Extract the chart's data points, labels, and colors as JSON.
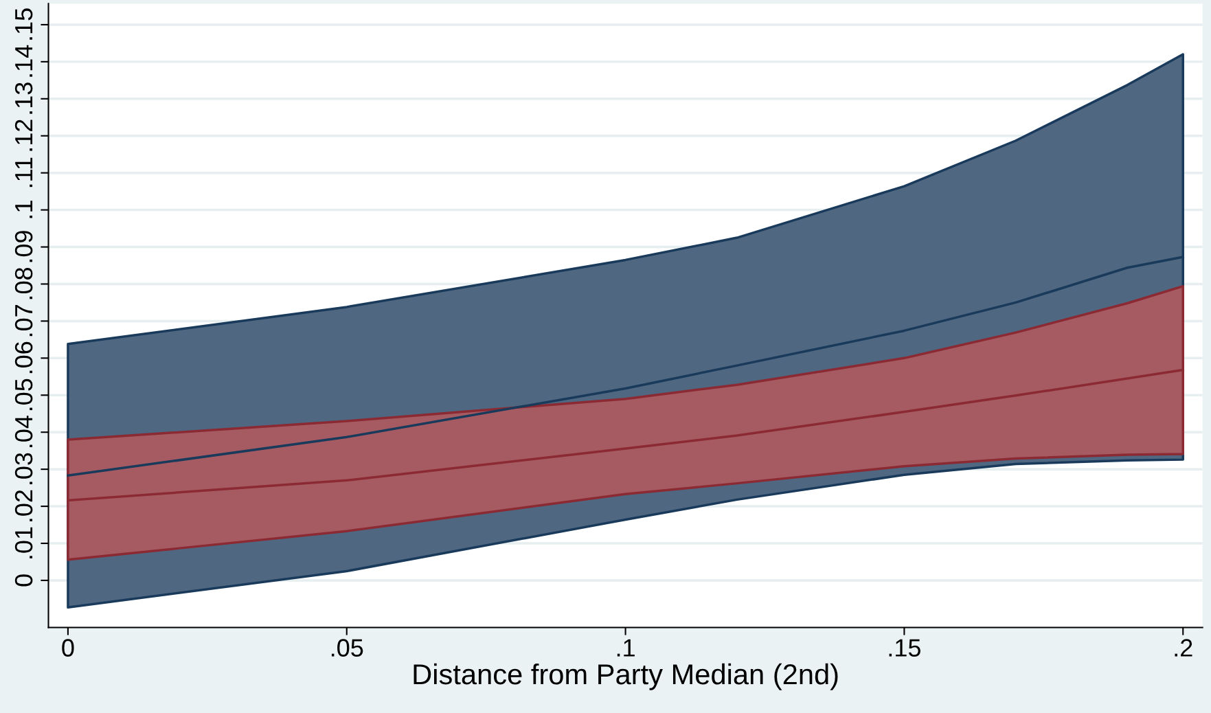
{
  "chart_data": {
    "type": "line",
    "xlabel": "Distance from Party Median (2nd)",
    "x": [
      0,
      0.05,
      0.1,
      0.12,
      0.15,
      0.17,
      0.19,
      0.2
    ],
    "series": [
      {
        "color": "#1a3a5c",
        "values": [
          0.0283,
          0.0387,
          0.0518,
          0.058,
          0.0674,
          0.075,
          0.0844,
          0.0873
        ],
        "lower": [
          -0.0073,
          0.0025,
          0.0164,
          0.0218,
          0.0285,
          0.0314,
          0.0324,
          0.0326
        ],
        "upper": [
          0.0638,
          0.0738,
          0.0865,
          0.0925,
          0.1064,
          0.1187,
          0.1337,
          0.142
        ]
      },
      {
        "color": "#8b2a33",
        "values": [
          0.0216,
          0.027,
          0.0356,
          0.0391,
          0.0455,
          0.0499,
          0.0545,
          0.0568
        ],
        "lower": [
          0.0056,
          0.0133,
          0.0233,
          0.0262,
          0.0308,
          0.0329,
          0.0339,
          0.0341
        ],
        "upper": [
          0.038,
          0.043,
          0.049,
          0.0528,
          0.06,
          0.0669,
          0.0748,
          0.0794
        ]
      }
    ],
    "xlim": [
      -0.0035,
      0.2035
    ],
    "ylim": [
      -0.0127,
      0.1557
    ],
    "xticks": [
      0,
      {
        "value": 0.05,
        "label": ".05"
      },
      {
        "value": 0.1,
        "label": ".1"
      },
      {
        "value": 0.15,
        "label": ".15"
      },
      {
        "value": 0.2,
        "label": ".2"
      }
    ],
    "yticks": [
      0,
      {
        "value": 0.01,
        "label": ".01"
      },
      {
        "value": 0.02,
        "label": ".02"
      },
      {
        "value": 0.03,
        "label": ".03"
      },
      {
        "value": 0.04,
        "label": ".04"
      },
      {
        "value": 0.05,
        "label": ".05"
      },
      {
        "value": 0.06,
        "label": ".06"
      },
      {
        "value": 0.07,
        "label": ".07"
      },
      {
        "value": 0.08,
        "label": ".08"
      },
      {
        "value": 0.09,
        "label": ".09"
      },
      {
        "value": 0.1,
        "label": ".1"
      },
      {
        "value": 0.11,
        "label": ".11"
      },
      {
        "value": 0.12,
        "label": ".12"
      },
      {
        "value": 0.13,
        "label": ".13"
      },
      {
        "value": 0.14,
        "label": ".14"
      },
      {
        "value": 0.15,
        "label": ".15"
      }
    ],
    "grid": "y"
  }
}
